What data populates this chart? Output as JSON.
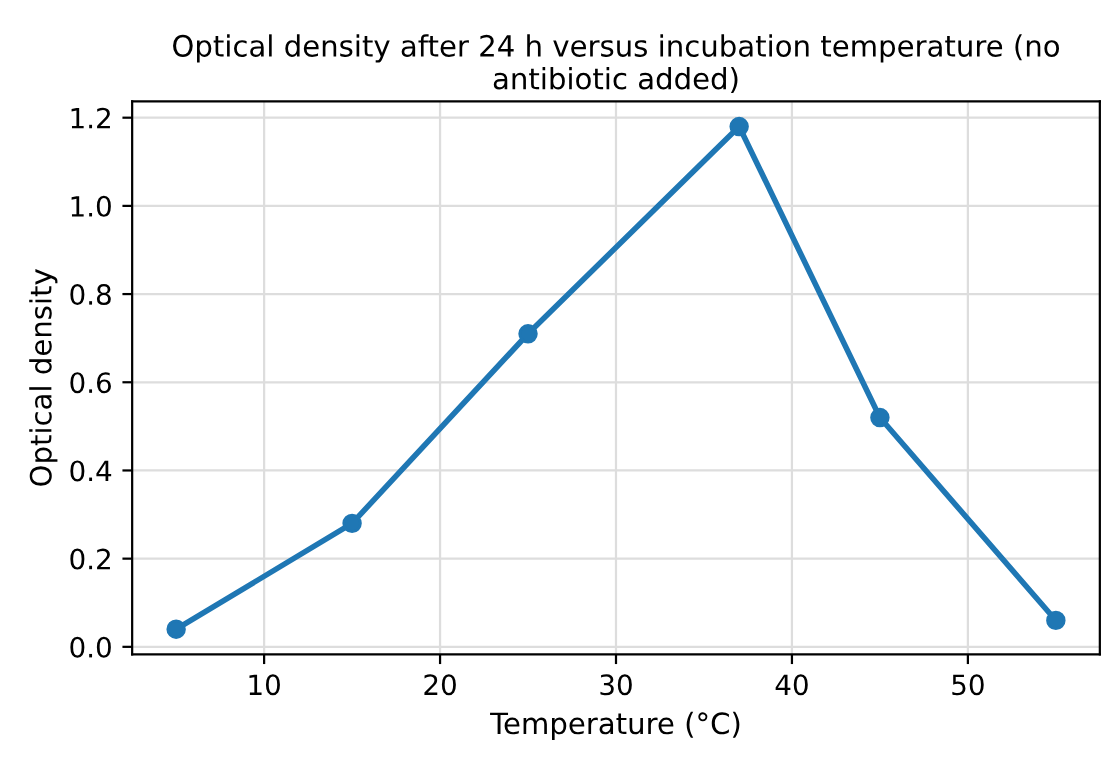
{
  "chart_data": {
    "type": "line",
    "title": "Optical density after 24 h versus incubation temperature (no antibiotic added)",
    "xlabel": "Temperature (°C)",
    "ylabel": "Optical density",
    "x": [
      5,
      15,
      25,
      37,
      45,
      55
    ],
    "series": [
      {
        "color": "#1f77b4",
        "values": [
          0.04,
          0.28,
          0.71,
          1.18,
          0.52,
          0.06
        ]
      }
    ],
    "xlim": [
      2.5,
      57.5
    ],
    "xticks": [
      10,
      20,
      30,
      40,
      50
    ],
    "ylim": [
      -0.017,
      1.237
    ],
    "yticks": [
      {
        "value": 0,
        "label": "0.0"
      },
      0.2,
      0.4,
      0.6,
      0.8,
      {
        "value": 1,
        "label": "1.0"
      },
      1.2
    ],
    "grid": true,
    "marker": "circle",
    "line_style": "solid"
  }
}
